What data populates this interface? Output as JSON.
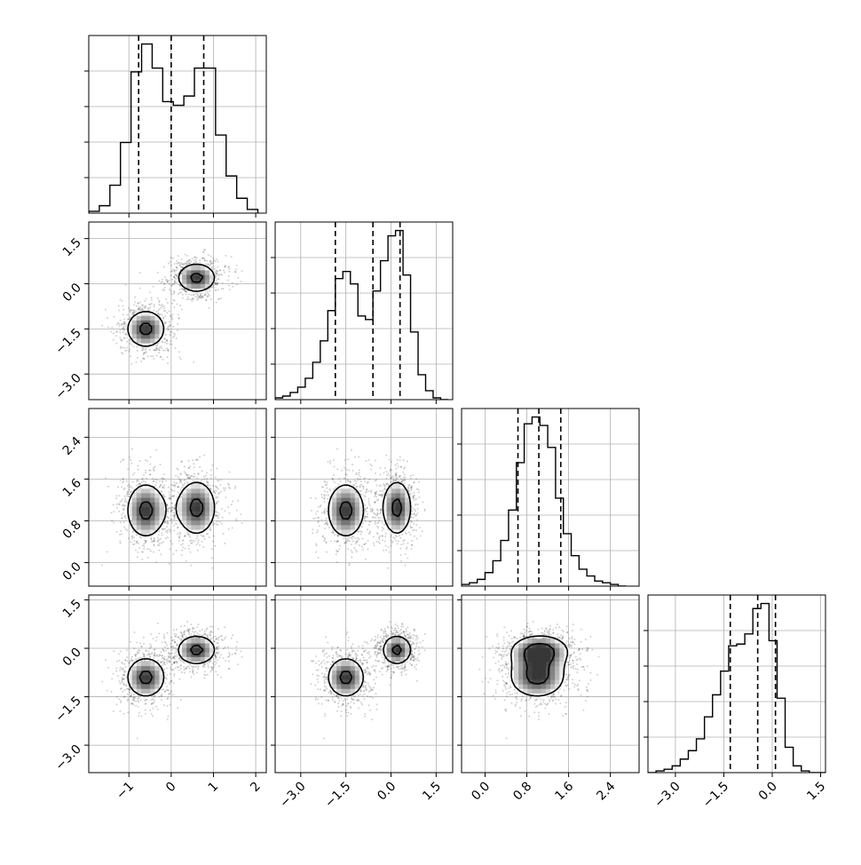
{
  "chart_data": {
    "type": "corner",
    "n_params": 4,
    "axis_ranges": [
      [
        -1.95,
        2.25
      ],
      [
        -3.85,
        2.05
      ],
      [
        -0.45,
        2.95
      ],
      [
        -3.85,
        1.65
      ]
    ],
    "ticks": [
      {
        "values": [
          -1,
          0,
          1,
          2
        ],
        "labels": [
          "−1",
          "0",
          "1",
          "2"
        ]
      },
      {
        "values": [
          -3.0,
          -1.5,
          0.0,
          1.5
        ],
        "labels": [
          "−3.0",
          "−1.5",
          "0.0",
          "1.5"
        ]
      },
      {
        "values": [
          0.0,
          0.8,
          1.6,
          2.4
        ],
        "labels": [
          "0.0",
          "0.8",
          "1.6",
          "2.4"
        ]
      },
      {
        "values": [
          -3.0,
          -1.5,
          0.0,
          1.5
        ],
        "labels": [
          "−3.0",
          "−1.5",
          "0.0",
          "1.5"
        ]
      }
    ],
    "quantiles": [
      [
        -0.77,
        0.0,
        0.77
      ],
      [
        -1.85,
        -0.6,
        0.3
      ],
      [
        0.63,
        1.03,
        1.45
      ],
      [
        -1.3,
        -0.45,
        0.1
      ]
    ],
    "histograms": [
      {
        "bins": [
          -1.95,
          -1.7,
          -1.45,
          -1.2,
          -0.95,
          -0.7,
          -0.45,
          -0.2,
          0.05,
          0.3,
          0.55,
          0.8,
          1.05,
          1.3,
          1.55,
          1.8,
          2.05
        ],
        "densities": [
          0.01,
          0.04,
          0.15,
          0.38,
          0.76,
          0.91,
          0.78,
          0.6,
          0.58,
          0.63,
          0.78,
          0.78,
          0.42,
          0.2,
          0.08,
          0.02
        ]
      },
      {
        "bins": [
          -3.85,
          -3.6,
          -3.35,
          -3.1,
          -2.85,
          -2.6,
          -2.35,
          -2.1,
          -1.85,
          -1.6,
          -1.35,
          -1.1,
          -0.85,
          -0.6,
          -0.35,
          -0.1,
          0.15,
          0.4,
          0.65,
          0.9,
          1.15,
          1.4,
          1.65,
          1.9
        ],
        "densities": [
          0.01,
          0.02,
          0.04,
          0.07,
          0.12,
          0.21,
          0.33,
          0.5,
          0.68,
          0.72,
          0.65,
          0.47,
          0.45,
          0.61,
          0.78,
          0.92,
          0.95,
          0.7,
          0.38,
          0.14,
          0.05,
          0.01,
          0.0
        ]
      },
      {
        "bins": [
          -0.45,
          -0.3,
          -0.15,
          0.0,
          0.15,
          0.3,
          0.45,
          0.6,
          0.75,
          0.9,
          1.05,
          1.2,
          1.35,
          1.5,
          1.65,
          1.8,
          1.95,
          2.1,
          2.25,
          2.4,
          2.55,
          2.7
        ],
        "densities": [
          0.01,
          0.02,
          0.04,
          0.08,
          0.15,
          0.27,
          0.45,
          0.73,
          0.96,
          1.0,
          0.95,
          0.82,
          0.52,
          0.31,
          0.18,
          0.1,
          0.06,
          0.03,
          0.02,
          0.01,
          0.0
        ]
      },
      {
        "bins": [
          -3.85,
          -3.6,
          -3.35,
          -3.1,
          -2.85,
          -2.6,
          -2.35,
          -2.1,
          -1.85,
          -1.6,
          -1.35,
          -1.1,
          -0.85,
          -0.6,
          -0.35,
          -0.1,
          0.15,
          0.4,
          0.65,
          0.9,
          1.15,
          1.4,
          1.65
        ],
        "densities": [
          0.0,
          0.01,
          0.02,
          0.04,
          0.08,
          0.13,
          0.2,
          0.33,
          0.46,
          0.6,
          0.75,
          0.76,
          0.82,
          0.97,
          1.0,
          0.78,
          0.44,
          0.15,
          0.04,
          0.01,
          0.0,
          0.0
        ]
      }
    ],
    "modes": [
      {
        "weight": 0.5,
        "mean": [
          -0.6,
          -1.5,
          1.0,
          -0.9
        ],
        "sd": [
          0.33,
          0.45,
          0.38,
          0.45
        ]
      },
      {
        "weight": 0.5,
        "mean": [
          0.6,
          0.2,
          1.05,
          -0.05
        ],
        "sd": [
          0.33,
          0.35,
          0.38,
          0.33
        ]
      }
    ],
    "contour_levels": [
      0.22,
      0.45,
      0.7,
      0.9
    ],
    "scatter_points": 1400,
    "grid": true,
    "legend": "none"
  }
}
